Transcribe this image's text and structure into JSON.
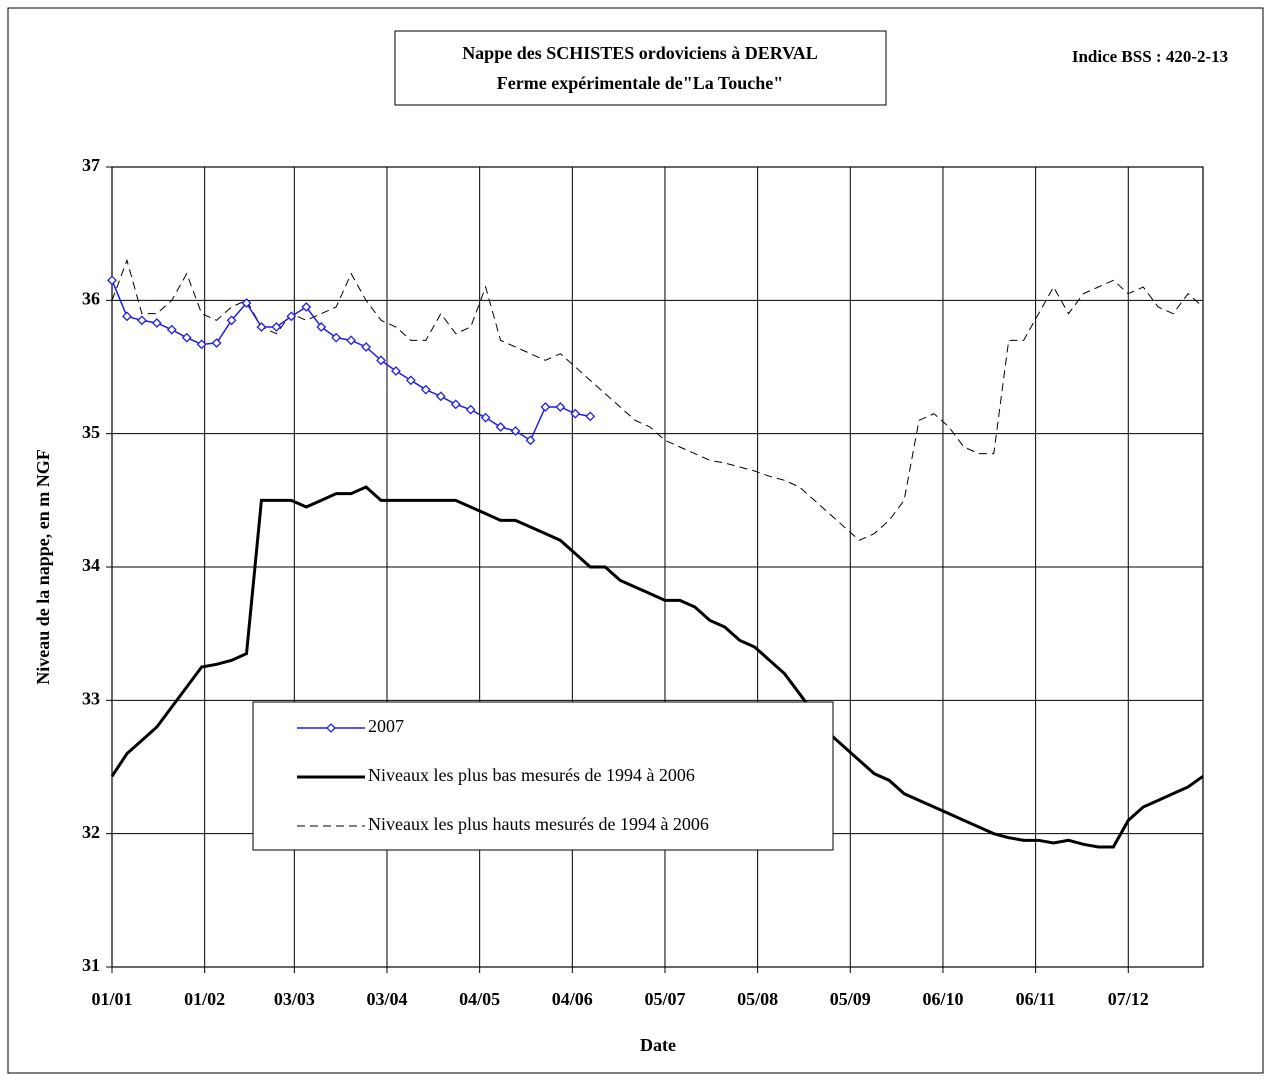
{
  "chart_data": {
    "type": "line",
    "title": "Nappe des SCHISTES ordoviciens à DERVAL",
    "subtitle": "Ferme expérimentale de\"La Touche\"",
    "annotation": "Indice BSS : 420-2-13",
    "xlabel": "Date",
    "ylabel": "Niveau de la nappe, en m NGF",
    "xlim": [
      0,
      365
    ],
    "xticks": [
      {
        "value": 0,
        "label": "01/01"
      },
      {
        "value": 31,
        "label": "01/02"
      },
      {
        "value": 61,
        "label": "03/03"
      },
      {
        "value": 92,
        "label": "03/04"
      },
      {
        "value": 123,
        "label": "04/05"
      },
      {
        "value": 154,
        "label": "04/06"
      },
      {
        "value": 185,
        "label": "05/07"
      },
      {
        "value": 216,
        "label": "05/08"
      },
      {
        "value": 247,
        "label": "05/09"
      },
      {
        "value": 278,
        "label": "06/10"
      },
      {
        "value": 309,
        "label": "06/11"
      },
      {
        "value": 340,
        "label": "07/12"
      }
    ],
    "ylim": [
      31,
      37
    ],
    "yticks": [
      31,
      32,
      33,
      34,
      35,
      36,
      37
    ],
    "grid": true,
    "legend": "lower-left",
    "x": [
      0,
      5,
      10,
      15,
      20,
      25,
      30,
      35,
      40,
      45,
      50,
      55,
      60,
      65,
      70,
      75,
      80,
      85,
      90,
      95,
      100,
      105,
      110,
      115,
      120,
      125,
      130,
      135,
      140,
      145,
      150,
      155,
      160,
      165,
      170,
      175,
      180,
      185,
      190,
      195,
      200,
      205,
      210,
      215,
      220,
      225,
      230,
      235,
      240,
      245,
      250,
      255,
      260,
      265,
      270,
      275,
      280,
      285,
      290,
      295,
      300,
      305,
      310,
      315,
      320,
      325,
      330,
      335,
      340,
      345,
      350,
      355,
      360,
      365
    ],
    "series": [
      {
        "name": "2007",
        "color": "#1f1fe6",
        "style": "markers",
        "values": [
          36.15,
          35.88,
          35.85,
          35.83,
          35.78,
          35.72,
          35.67,
          35.68,
          35.85,
          35.98,
          35.8,
          35.8,
          35.88,
          35.95,
          35.8,
          35.72,
          35.7,
          35.65,
          35.55,
          35.47,
          35.4,
          35.33,
          35.28,
          35.22,
          35.18,
          35.12,
          35.05,
          35.02,
          34.95,
          35.2,
          35.2,
          35.15,
          35.13,
          null,
          null,
          null,
          null,
          null,
          null,
          null,
          null,
          null,
          null,
          null,
          null,
          null,
          null,
          null,
          null,
          null,
          null,
          null,
          null,
          null,
          null,
          null,
          null,
          null,
          null,
          null,
          null,
          null,
          null,
          null,
          null,
          null,
          null,
          null,
          null,
          null,
          null,
          null,
          null,
          null
        ]
      },
      {
        "name": "Niveaux les plus bas mesurés de 1994 à 2006",
        "color": "#000000",
        "style": "solid",
        "values": [
          32.43,
          32.6,
          32.7,
          32.8,
          32.95,
          33.1,
          33.25,
          33.27,
          33.3,
          33.35,
          34.5,
          34.5,
          34.5,
          34.45,
          34.5,
          34.55,
          34.55,
          34.6,
          34.5,
          34.5,
          34.5,
          34.5,
          34.5,
          34.5,
          34.45,
          34.4,
          34.35,
          34.35,
          34.3,
          34.25,
          34.2,
          34.1,
          34.0,
          34.0,
          33.9,
          33.85,
          33.8,
          33.75,
          33.75,
          33.7,
          33.6,
          33.55,
          33.45,
          33.4,
          33.3,
          33.2,
          33.05,
          32.9,
          32.75,
          32.65,
          32.55,
          32.45,
          32.4,
          32.3,
          32.25,
          32.2,
          32.15,
          32.1,
          32.05,
          32.0,
          31.97,
          31.95,
          31.95,
          31.93,
          31.95,
          31.92,
          31.9,
          31.9,
          32.1,
          32.2,
          32.25,
          32.3,
          32.35,
          32.43
        ]
      },
      {
        "name": "Niveaux les plus hauts mesurés de 1994 à 2006",
        "color": "#000000",
        "style": "dashed",
        "values": [
          36.0,
          36.3,
          35.9,
          35.9,
          36.0,
          36.2,
          35.9,
          35.85,
          35.95,
          36.0,
          35.8,
          35.75,
          35.9,
          35.85,
          35.9,
          35.95,
          36.2,
          36.0,
          35.85,
          35.8,
          35.7,
          35.7,
          35.9,
          35.75,
          35.8,
          36.1,
          35.7,
          35.65,
          35.6,
          35.55,
          35.6,
          35.5,
          35.4,
          35.3,
          35.2,
          35.1,
          35.05,
          34.95,
          34.9,
          34.85,
          34.8,
          34.78,
          34.75,
          34.72,
          34.68,
          34.65,
          34.6,
          34.5,
          34.4,
          34.3,
          34.2,
          34.25,
          34.35,
          34.5,
          35.1,
          35.15,
          35.05,
          34.9,
          34.85,
          34.85,
          35.7,
          35.7,
          35.9,
          36.1,
          35.9,
          36.05,
          36.1,
          36.15,
          36.05,
          36.1,
          35.95,
          35.9,
          36.05,
          35.95
        ]
      }
    ]
  }
}
